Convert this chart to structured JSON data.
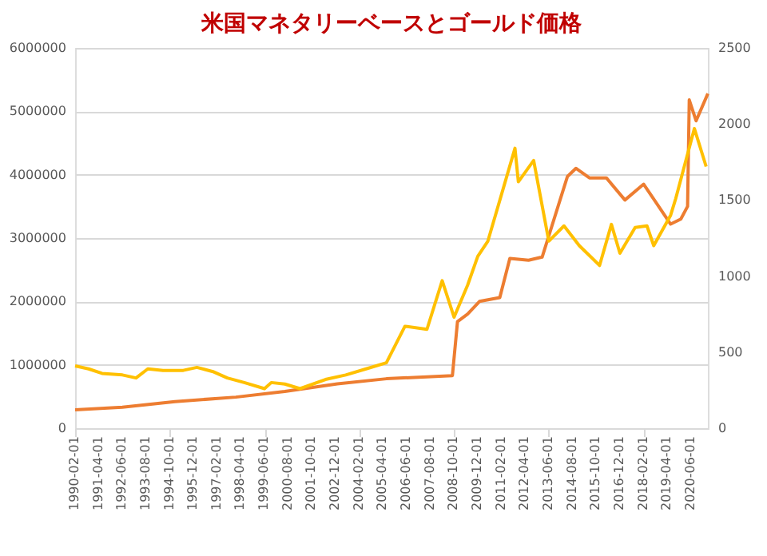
{
  "chart_data": {
    "type": "line",
    "title": "米国マネタリーベースとゴールド価格",
    "xlim": [
      "1990-02-01",
      "2021-04-01"
    ],
    "xticks": [
      "1990-02-01",
      "1991-04-01",
      "1992-06-01",
      "1993-08-01",
      "1994-10-01",
      "1995-12-01",
      "1997-02-01",
      "1998-04-01",
      "1999-06-01",
      "2000-08-01",
      "2001-10-01",
      "2002-12-01",
      "2004-02-01",
      "2005-04-01",
      "2006-06-01",
      "2007-08-01",
      "2008-10-01",
      "2009-12-01",
      "2011-02-01",
      "2012-04-01",
      "2013-06-01",
      "2014-08-01",
      "2015-10-01",
      "2016-12-01",
      "2018-02-01",
      "2019-04-01",
      "2020-06-01"
    ],
    "ylim": [
      0,
      6000000
    ],
    "yticks": [
      0,
      1000000,
      2000000,
      3000000,
      4000000,
      5000000,
      6000000
    ],
    "y2lim": [
      0,
      2500
    ],
    "y2ticks": [
      0,
      500,
      1000,
      1500,
      2000,
      2500
    ],
    "grid": "y",
    "line_style": "solid",
    "marker": "none",
    "series": [
      {
        "color": "#ed7d31",
        "x": [
          "1990-02-01",
          "1992-06-01",
          "1995-01-01",
          "1998-01-01",
          "2000-06-01",
          "2003-01-01",
          "2005-06-01",
          "2008-09-01",
          "2008-12-01",
          "2009-06-01",
          "2010-01-01",
          "2011-01-01",
          "2011-07-01",
          "2012-06-01",
          "2013-02-01",
          "2014-05-01",
          "2014-10-01",
          "2015-06-01",
          "2016-04-01",
          "2017-03-01",
          "2018-02-01",
          "2019-06-01",
          "2019-12-01",
          "2020-04-01",
          "2020-05-01",
          "2020-09-01",
          "2021-04-01"
        ],
        "values": [
          290000,
          330000,
          420000,
          490000,
          580000,
          700000,
          780000,
          830000,
          1680000,
          1800000,
          2000000,
          2060000,
          2680000,
          2650000,
          2700000,
          3970000,
          4100000,
          3950000,
          3950000,
          3600000,
          3850000,
          3220000,
          3300000,
          3500000,
          5180000,
          4850000,
          5280000
        ]
      },
      {
        "color": "#ffc000",
        "axis": "y2",
        "x": [
          "1990-02-01",
          "1990-10-01",
          "1991-06-01",
          "1992-06-01",
          "1993-02-01",
          "1993-09-01",
          "1994-06-01",
          "1995-06-01",
          "1996-02-01",
          "1996-12-01",
          "1997-08-01",
          "1998-06-01",
          "1999-06-01",
          "1999-10-01",
          "2000-06-01",
          "2001-03-01",
          "2002-06-01",
          "2003-06-01",
          "2004-06-01",
          "2005-06-01",
          "2006-05-01",
          "2007-06-01",
          "2008-03-01",
          "2008-10-01",
          "2009-06-01",
          "2009-12-01",
          "2010-06-01",
          "2011-10-01",
          "2011-12-01",
          "2012-09-01",
          "2013-06-01",
          "2014-03-01",
          "2014-12-01",
          "2015-12-01",
          "2016-07-01",
          "2016-12-01",
          "2017-09-01",
          "2018-04-01",
          "2018-08-01",
          "2019-06-01",
          "2019-09-01",
          "2020-08-01",
          "2021-03-01"
        ],
        "values": [
          410,
          390,
          360,
          350,
          330,
          390,
          380,
          380,
          400,
          370,
          330,
          300,
          260,
          300,
          290,
          260,
          320,
          350,
          390,
          430,
          670,
          650,
          970,
          730,
          940,
          1130,
          1230,
          1840,
          1620,
          1760,
          1230,
          1330,
          1200,
          1070,
          1340,
          1150,
          1320,
          1330,
          1200,
          1400,
          1510,
          1970,
          1720
        ]
      }
    ]
  }
}
